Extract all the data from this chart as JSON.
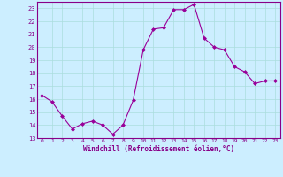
{
  "x": [
    0,
    1,
    2,
    3,
    4,
    5,
    6,
    7,
    8,
    9,
    10,
    11,
    12,
    13,
    14,
    15,
    16,
    17,
    18,
    19,
    20,
    21,
    22,
    23
  ],
  "y": [
    16.3,
    15.8,
    14.7,
    13.7,
    14.1,
    14.3,
    14.0,
    13.3,
    14.0,
    15.9,
    19.8,
    21.4,
    21.5,
    22.9,
    22.9,
    23.3,
    20.7,
    20.0,
    19.8,
    18.5,
    18.1,
    17.2,
    17.4,
    17.4
  ],
  "line_color": "#990099",
  "marker": "D",
  "markersize": 2.0,
  "linewidth": 0.8,
  "bg_color": "#cceeff",
  "grid_color": "#aadddd",
  "xlabel": "Windchill (Refroidissement éolien,°C)",
  "xlim": [
    -0.5,
    23.5
  ],
  "ylim": [
    13,
    23.5
  ],
  "yticks": [
    13,
    14,
    15,
    16,
    17,
    18,
    19,
    20,
    21,
    22,
    23
  ],
  "xticks": [
    0,
    1,
    2,
    3,
    4,
    5,
    6,
    7,
    8,
    9,
    10,
    11,
    12,
    13,
    14,
    15,
    16,
    17,
    18,
    19,
    20,
    21,
    22,
    23
  ],
  "tick_color": "#880088",
  "label_color": "#880088",
  "spine_color": "#880088",
  "font_color": "#880088"
}
